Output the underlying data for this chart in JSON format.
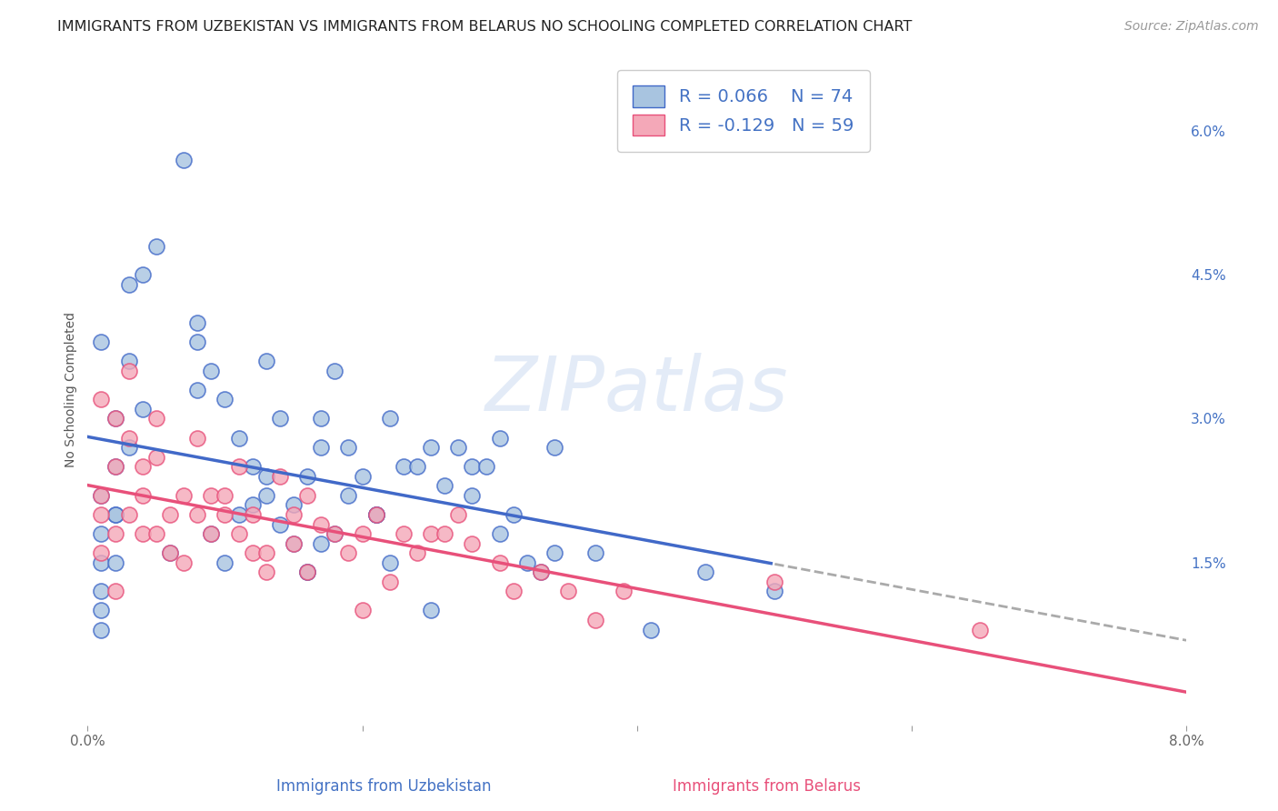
{
  "title": "IMMIGRANTS FROM UZBEKISTAN VS IMMIGRANTS FROM BELARUS NO SCHOOLING COMPLETED CORRELATION CHART",
  "source": "Source: ZipAtlas.com",
  "ylabel": "No Schooling Completed",
  "xlim": [
    0.0,
    0.08
  ],
  "ylim": [
    -0.002,
    0.068
  ],
  "yticks_right": [
    0.06,
    0.045,
    0.03,
    0.015
  ],
  "ytick_labels_right": [
    "6.0%",
    "4.5%",
    "3.0%",
    "1.5%"
  ],
  "watermark": "ZIPatlas",
  "legend_R1": "R = 0.066",
  "legend_N1": "N = 74",
  "legend_R2": "R = -0.129",
  "legend_N2": "N = 59",
  "color_uzbekistan": "#a8c4e0",
  "color_belarus": "#f4a8b8",
  "trend_color_uzbekistan": "#4169c8",
  "trend_color_belarus": "#e8507a",
  "background_color": "#ffffff",
  "grid_color": "#cccccc",
  "uzbekistan_x": [
    0.001,
    0.007,
    0.003,
    0.001,
    0.002,
    0.001,
    0.001,
    0.001,
    0.001,
    0.002,
    0.003,
    0.002,
    0.002,
    0.004,
    0.005,
    0.002,
    0.001,
    0.003,
    0.004,
    0.006,
    0.008,
    0.008,
    0.009,
    0.01,
    0.011,
    0.012,
    0.013,
    0.009,
    0.01,
    0.008,
    0.013,
    0.014,
    0.012,
    0.013,
    0.011,
    0.015,
    0.016,
    0.016,
    0.014,
    0.017,
    0.018,
    0.017,
    0.019,
    0.02,
    0.021,
    0.017,
    0.016,
    0.015,
    0.018,
    0.019,
    0.022,
    0.023,
    0.021,
    0.024,
    0.021,
    0.025,
    0.026,
    0.025,
    0.027,
    0.022,
    0.028,
    0.03,
    0.028,
    0.03,
    0.029,
    0.031,
    0.034,
    0.032,
    0.033,
    0.034,
    0.037,
    0.041,
    0.045,
    0.05
  ],
  "uzbekistan_y": [
    0.022,
    0.057,
    0.044,
    0.038,
    0.025,
    0.018,
    0.015,
    0.01,
    0.008,
    0.02,
    0.036,
    0.03,
    0.015,
    0.045,
    0.048,
    0.02,
    0.012,
    0.027,
    0.031,
    0.016,
    0.04,
    0.038,
    0.035,
    0.032,
    0.028,
    0.025,
    0.022,
    0.018,
    0.015,
    0.033,
    0.036,
    0.03,
    0.021,
    0.024,
    0.02,
    0.017,
    0.014,
    0.024,
    0.019,
    0.027,
    0.035,
    0.03,
    0.027,
    0.024,
    0.02,
    0.017,
    0.014,
    0.021,
    0.018,
    0.022,
    0.03,
    0.025,
    0.02,
    0.025,
    0.02,
    0.027,
    0.023,
    0.01,
    0.027,
    0.015,
    0.025,
    0.028,
    0.022,
    0.018,
    0.025,
    0.02,
    0.027,
    0.015,
    0.014,
    0.016,
    0.016,
    0.008,
    0.014,
    0.012
  ],
  "belarus_x": [
    0.001,
    0.001,
    0.001,
    0.001,
    0.002,
    0.002,
    0.002,
    0.002,
    0.003,
    0.003,
    0.003,
    0.004,
    0.004,
    0.004,
    0.005,
    0.005,
    0.005,
    0.006,
    0.006,
    0.007,
    0.007,
    0.008,
    0.008,
    0.009,
    0.009,
    0.01,
    0.01,
    0.011,
    0.011,
    0.012,
    0.012,
    0.013,
    0.013,
    0.014,
    0.015,
    0.015,
    0.016,
    0.016,
    0.017,
    0.018,
    0.019,
    0.02,
    0.02,
    0.021,
    0.022,
    0.023,
    0.024,
    0.025,
    0.026,
    0.027,
    0.028,
    0.03,
    0.031,
    0.033,
    0.035,
    0.037,
    0.039,
    0.05,
    0.065
  ],
  "belarus_y": [
    0.02,
    0.022,
    0.032,
    0.016,
    0.025,
    0.018,
    0.03,
    0.012,
    0.028,
    0.035,
    0.02,
    0.025,
    0.022,
    0.018,
    0.03,
    0.018,
    0.026,
    0.02,
    0.016,
    0.022,
    0.015,
    0.02,
    0.028,
    0.022,
    0.018,
    0.022,
    0.02,
    0.018,
    0.025,
    0.02,
    0.016,
    0.016,
    0.014,
    0.024,
    0.02,
    0.017,
    0.022,
    0.014,
    0.019,
    0.018,
    0.016,
    0.01,
    0.018,
    0.02,
    0.013,
    0.018,
    0.016,
    0.018,
    0.018,
    0.02,
    0.017,
    0.015,
    0.012,
    0.014,
    0.012,
    0.009,
    0.012,
    0.013,
    0.008
  ],
  "title_fontsize": 11.5,
  "axis_label_fontsize": 10,
  "tick_fontsize": 11,
  "legend_fontsize": 14,
  "source_fontsize": 10
}
